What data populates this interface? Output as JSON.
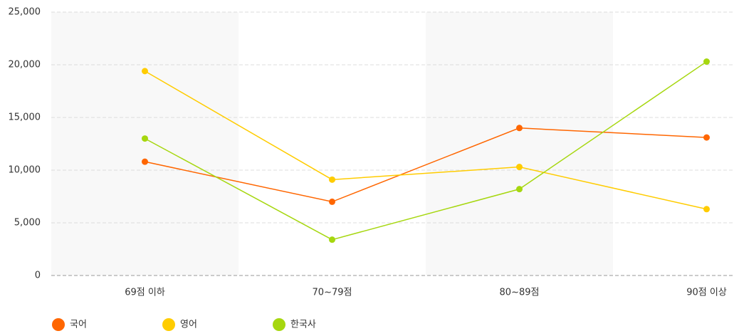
{
  "chart_data": {
    "type": "line",
    "categories": [
      "69점 이하",
      "70~79점",
      "80~89점",
      "90점 이상"
    ],
    "series": [
      {
        "name": "국어",
        "color": "#ff6600",
        "values": [
          10800,
          7000,
          14000,
          13100
        ]
      },
      {
        "name": "영어",
        "color": "#ffcc00",
        "values": [
          19400,
          9100,
          10300,
          6300
        ]
      },
      {
        "name": "한국사",
        "color": "#a6d70f",
        "values": [
          13000,
          3400,
          8200,
          20300
        ]
      }
    ],
    "ylim": [
      0,
      25000
    ],
    "yticks": [
      0,
      {
        "value": 5000,
        "label": "5,000"
      },
      {
        "value": 10000,
        "label": "10,000"
      },
      {
        "value": 15000,
        "label": "15,000"
      },
      {
        "value": 20000,
        "label": "20,000"
      },
      {
        "value": 25000,
        "label": "25,000"
      }
    ],
    "grid": true
  }
}
